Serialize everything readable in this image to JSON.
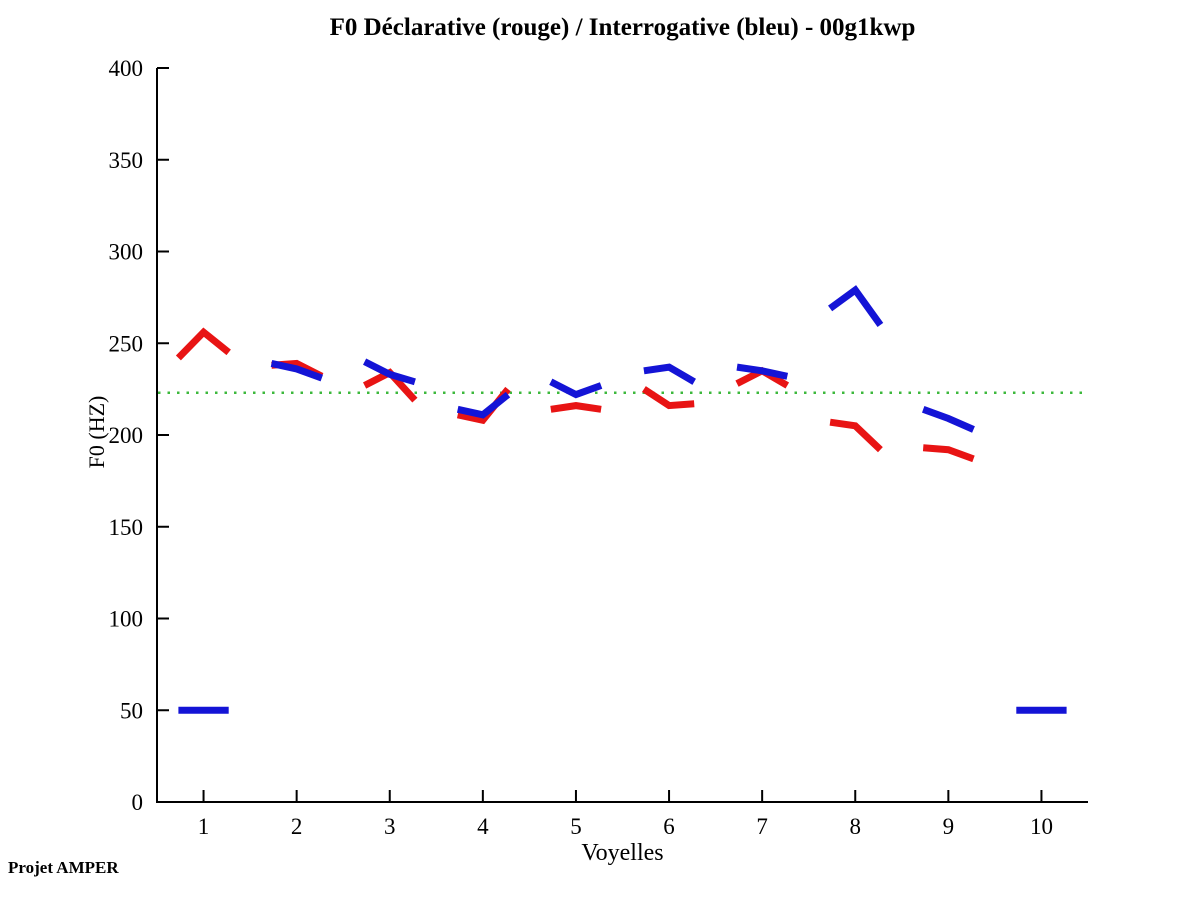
{
  "page": {
    "footer": "Projet AMPER"
  },
  "chart_data": {
    "type": "line",
    "title": "F0 Déclarative (rouge) / Interrogative (bleu) - 00g1kwp",
    "xlabel": "Voyelles",
    "ylabel": "F0 (HZ)",
    "xlim": [
      0.5,
      10.5
    ],
    "ylim": [
      0,
      400
    ],
    "xticks": [
      1,
      2,
      3,
      4,
      5,
      6,
      7,
      8,
      9,
      10
    ],
    "yticks": [
      0,
      50,
      100,
      150,
      200,
      250,
      300,
      350,
      400
    ],
    "grid": false,
    "legend_position": "none",
    "point_offsets": [
      -0.27,
      0,
      0.27
    ],
    "line_width": 7,
    "reference_line": {
      "y": 223,
      "style": "dotted",
      "color": "#3cb83c"
    },
    "series": [
      {
        "name": "Déclarative",
        "color": "#e81414",
        "segments": [
          [
            1,
            [
              242,
              256,
              245
            ]
          ],
          [
            2,
            [
              238,
              239,
              232
            ]
          ],
          [
            3,
            [
              227,
              234,
              219
            ]
          ],
          [
            4,
            [
              211,
              208,
              225
            ]
          ],
          [
            5,
            [
              214,
              216,
              214
            ]
          ],
          [
            6,
            [
              225,
              216,
              217
            ]
          ],
          [
            7,
            [
              228,
              235,
              227
            ]
          ],
          [
            8,
            [
              207,
              205,
              192
            ]
          ],
          [
            9,
            [
              193,
              192,
              187
            ]
          ]
        ]
      },
      {
        "name": "Interrogative",
        "color": "#1414d6",
        "segments": [
          [
            1,
            [
              50,
              50,
              50
            ]
          ],
          [
            2,
            [
              239,
              236,
              231
            ]
          ],
          [
            3,
            [
              240,
              233,
              229
            ]
          ],
          [
            4,
            [
              214,
              211,
              222
            ]
          ],
          [
            5,
            [
              229,
              222,
              227
            ]
          ],
          [
            6,
            [
              235,
              237,
              229
            ]
          ],
          [
            7,
            [
              237,
              235,
              232
            ]
          ],
          [
            8,
            [
              269,
              279,
              260
            ]
          ],
          [
            9,
            [
              214,
              209,
              203
            ]
          ],
          [
            10,
            [
              50,
              50,
              50
            ]
          ]
        ]
      }
    ]
  }
}
